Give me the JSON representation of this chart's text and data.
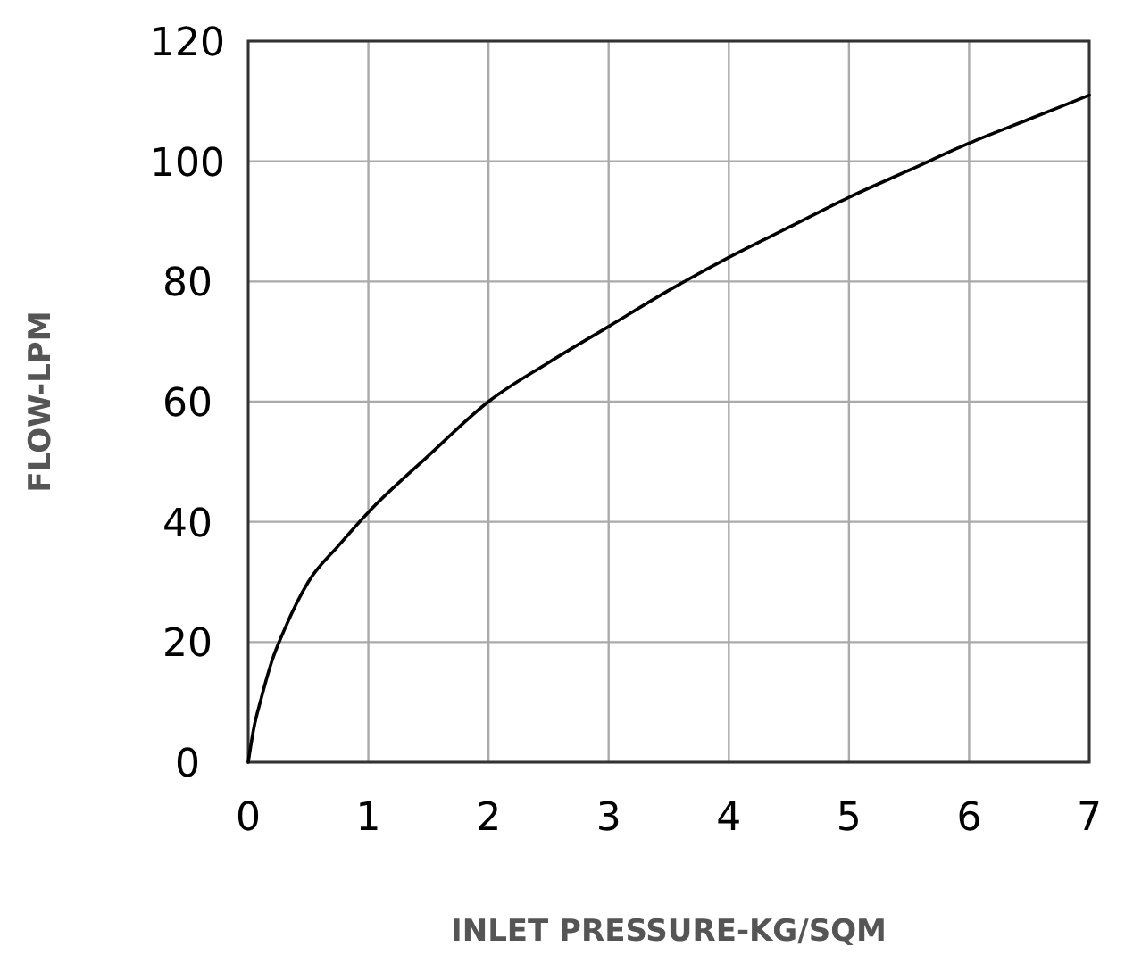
{
  "chart_data": {
    "type": "line",
    "xlabel": "INLET PRESSURE-KG/SQM",
    "ylabel": "FLOW-LPM",
    "x": [
      0,
      0.05,
      0.1,
      0.2,
      0.3,
      0.5,
      0.75,
      1,
      1.5,
      2,
      2.5,
      3,
      3.5,
      4,
      4.5,
      5,
      5.5,
      6,
      6.5,
      7
    ],
    "series": [
      {
        "color": "#000000",
        "values": [
          0,
          6,
          10,
          17,
          22,
          30,
          36,
          41.6,
          51,
          60,
          66.5,
          72.5,
          78.5,
          84,
          89,
          94,
          98.5,
          103,
          107,
          111
        ]
      }
    ],
    "xlim": [
      0,
      7
    ],
    "ylim": [
      0,
      120
    ],
    "xticks": [
      0,
      1,
      2,
      3,
      4,
      5,
      6,
      7
    ],
    "yticks": [
      0,
      20,
      40,
      60,
      80,
      100,
      120
    ],
    "grid": true,
    "marker": "none",
    "line_style": "solid"
  }
}
